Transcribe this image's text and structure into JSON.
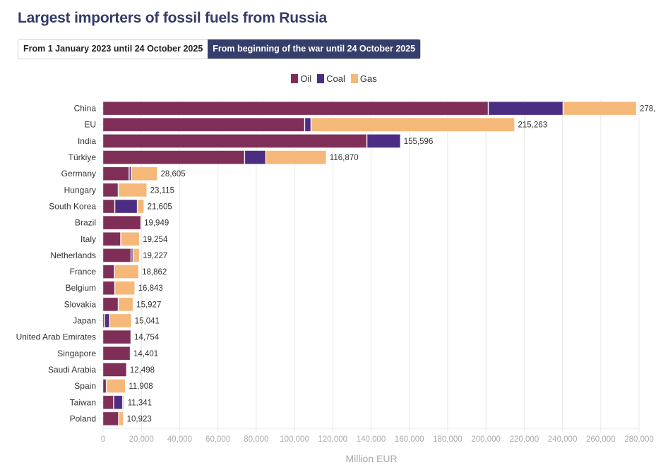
{
  "header": {
    "title": "Largest importers of fossil fuels from Russia"
  },
  "toggle": {
    "options": [
      {
        "label": "From 1 January 2023 until 24 October 2025",
        "active": false
      },
      {
        "label": "From beginning of the war until 24 October 2025",
        "active": true
      }
    ]
  },
  "chart_data": {
    "type": "bar",
    "orientation": "horizontal",
    "stacked": true,
    "title": "Largest importers of fossil fuels from Russia",
    "xlabel": "Million EUR",
    "ylabel": "",
    "xlim": [
      0,
      280000
    ],
    "xticks": [
      0,
      20000,
      40000,
      60000,
      80000,
      100000,
      120000,
      140000,
      160000,
      180000,
      200000,
      220000,
      240000,
      260000,
      280000
    ],
    "xtick_labels": [
      "0",
      "20,000",
      "40,000",
      "60,000",
      "80,000",
      "100,000",
      "120,000",
      "140,000",
      "160,000",
      "180,000",
      "200,000",
      "220,000",
      "240,000",
      "260,000",
      "280,000"
    ],
    "grid": true,
    "legend_position": "top-center",
    "categories": [
      "China",
      "EU",
      "India",
      "Türkiye",
      "Germany",
      "Hungary",
      "South Korea",
      "Brazil",
      "Italy",
      "Netherlands",
      "France",
      "Belgium",
      "Slovakia",
      "Japan",
      "United Arab Emirates",
      "Singapore",
      "Saudi Arabia",
      "Spain",
      "Taiwan",
      "Poland"
    ],
    "series": [
      {
        "name": "Oil",
        "color": "#7f2f57",
        "values": [
          201400,
          105500,
          138000,
          74100,
          13800,
          8100,
          6300,
          19949,
          9400,
          14800,
          6100,
          6300,
          8100,
          1000,
          14754,
          14401,
          12498,
          1900,
          5700,
          8300
        ]
      },
      {
        "name": "Coal",
        "color": "#4b2e83",
        "values": [
          39100,
          3300,
          17596,
          11100,
          1100,
          0,
          11800,
          0,
          0,
          1000,
          0,
          0,
          0,
          2600,
          0,
          0,
          0,
          0,
          4700,
          0
        ]
      },
      {
        "name": "Gas",
        "color": "#f6b878",
        "values": [
          38400,
          106463,
          0,
          31670,
          13705,
          15015,
          3505,
          0,
          9854,
          3427,
          12762,
          10543,
          7827,
          11441,
          0,
          0,
          0,
          10008,
          941,
          2623
        ]
      }
    ],
    "totals": [
      278900,
      215263,
      155596,
      116870,
      28605,
      23115,
      21605,
      19949,
      19254,
      19227,
      18862,
      16843,
      15927,
      15041,
      14754,
      14401,
      12498,
      11908,
      11341,
      10923
    ],
    "total_labels": [
      "278,",
      "215,263",
      "155,596",
      "116,870",
      "28,605",
      "23,115",
      "21,605",
      "19,949",
      "19,254",
      "19,227",
      "18,862",
      "16,843",
      "15,927",
      "15,041",
      "14,754",
      "14,401",
      "12,498",
      "11,908",
      "11,341",
      "10,923"
    ]
  }
}
